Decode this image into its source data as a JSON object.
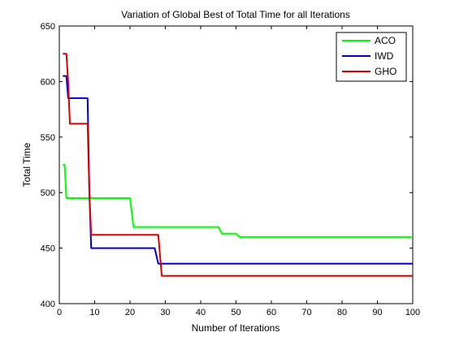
{
  "chart_data": {
    "type": "line",
    "title": "Variation of Global Best of Total Time for all Iterations",
    "xlabel": "Number of Iterations",
    "ylabel": "Total Time",
    "xlim": [
      0,
      100
    ],
    "ylim": [
      400,
      650
    ],
    "xticks": [
      0,
      10,
      20,
      30,
      40,
      50,
      60,
      70,
      80,
      90,
      100
    ],
    "yticks": [
      400,
      450,
      500,
      550,
      600,
      650
    ],
    "grid": false,
    "legend_position": "top-right",
    "series": [
      {
        "name": "ACO",
        "color": "#00ff00",
        "x": [
          1,
          1.5,
          2,
          20,
          21,
          45,
          46,
          50,
          51,
          100
        ],
        "y": [
          525,
          525,
          495,
          495,
          469,
          469,
          463,
          463,
          460,
          460
        ]
      },
      {
        "name": "IWD",
        "color": "#0000cc",
        "x": [
          1,
          2,
          2.5,
          3,
          8,
          8.5,
          9,
          27,
          28,
          100
        ],
        "y": [
          605,
          605,
          585,
          585,
          585,
          500,
          450,
          450,
          436,
          436
        ]
      },
      {
        "name": "GHO",
        "color": "#dd0000",
        "x": [
          1,
          2,
          2.5,
          3,
          8,
          8.5,
          9,
          28,
          29,
          100
        ],
        "y": [
          625,
          625,
          600,
          562,
          562,
          500,
          462,
          462,
          425,
          425
        ]
      }
    ]
  }
}
